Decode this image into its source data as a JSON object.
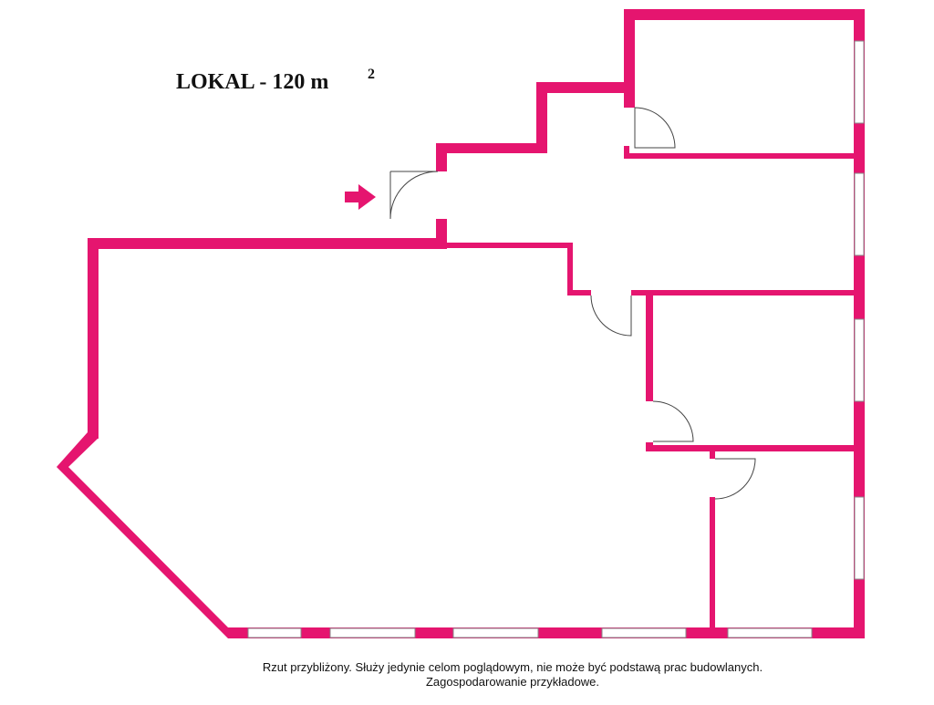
{
  "title": {
    "text": "LOKAL - 120 m",
    "superscript": "2"
  },
  "note": {
    "lines": [
      "Rzut przybliżony. Służy jedynie celom poglądowym, nie może być podstawą prac budowlanych.",
      "Zagospodarowanie przykładowe."
    ]
  }
}
